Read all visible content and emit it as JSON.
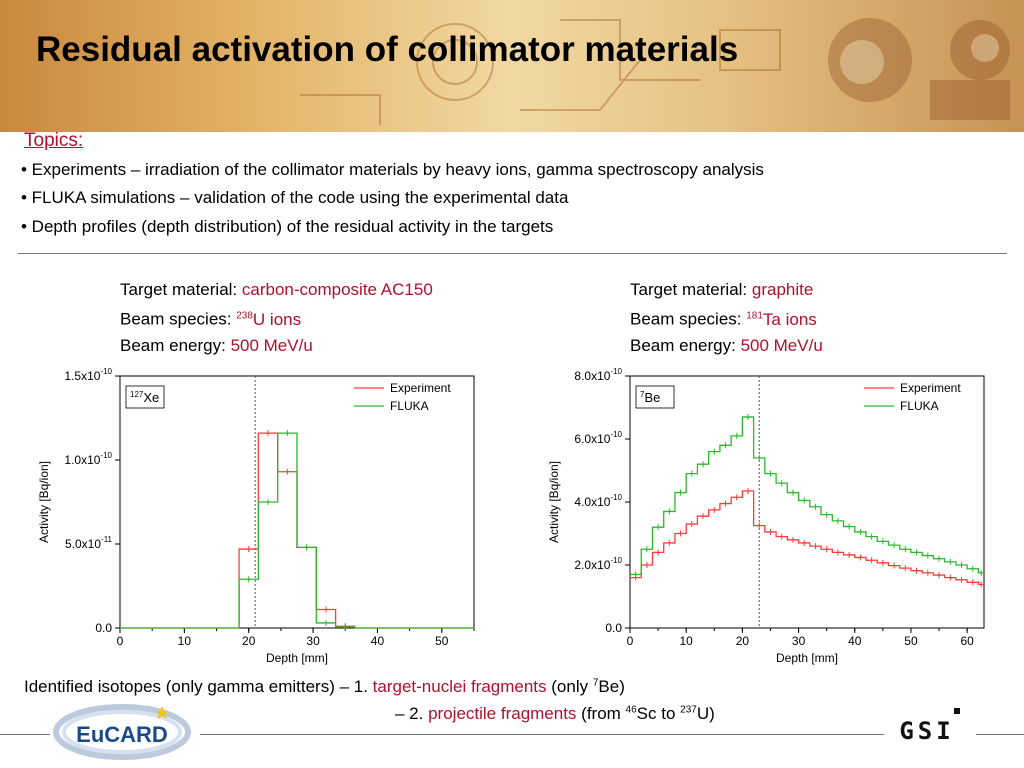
{
  "title": "Residual activation of collimator materials",
  "topics": {
    "heading": "Topics:",
    "bullets": [
      "• Experiments – irradiation of the collimator materials by heavy ions, gamma spectroscopy analysis",
      "• FLUKA simulations – validation of the code using the experimental data",
      "• Depth profiles (depth distribution) of the residual activity in the targets"
    ]
  },
  "left_info": {
    "material_label": "Target material: ",
    "material_value": "carbon-composite AC150",
    "species_label": "Beam species: ",
    "species_mass": "238",
    "species_value": "U ions",
    "energy_label": "Beam energy: ",
    "energy_value": "500 MeV/u"
  },
  "right_info": {
    "material_label": "Target material: ",
    "material_value": "graphite",
    "species_label": "Beam species: ",
    "species_mass": "181",
    "species_value": "Ta ions",
    "energy_label": "Beam energy: ",
    "energy_value": "500 MeV/u"
  },
  "footer": {
    "line1_prefix": "Identified isotopes (only gamma emitters)  – 1. ",
    "line1_highlight": "target-nuclei fragments",
    "line1_suffix_a": " (only ",
    "line1_sup": "7",
    "line1_suffix_b": "Be)",
    "line2_prefix": "– 2. ",
    "line2_highlight": "projectile fragments",
    "line2_suffix_a": " (from ",
    "line2_sup1": "46",
    "line2_mid": "Sc to ",
    "line2_sup2": "237",
    "line2_suffix_b": "U)"
  },
  "logos": {
    "left": "EuCARD",
    "right": "GSI"
  },
  "colors": {
    "accent": "#b0102e",
    "experiment": "#ff3b3b",
    "fluka": "#2db82d"
  },
  "chart_data": [
    {
      "type": "line",
      "step": true,
      "isotope_mass": "127",
      "isotope": "Xe",
      "xlabel": "Depth [mm]",
      "ylabel": "Activity [Bq/ion]",
      "xlim": [
        0,
        55
      ],
      "ylim": [
        0,
        1.5e-10
      ],
      "xticks": [
        0,
        10,
        20,
        30,
        40,
        50
      ],
      "xtick_labels": [
        "0",
        "10",
        "20",
        "30",
        "40",
        "50"
      ],
      "yticks": [
        0,
        5e-11,
        1e-10,
        1.5e-10
      ],
      "ytick_labels": [
        {
          "base": "0.0",
          "exp": ""
        },
        {
          "base": "5.0x10",
          "exp": "-11"
        },
        {
          "base": "1.0x10",
          "exp": "-10"
        },
        {
          "base": "1.5x10",
          "exp": "-10"
        }
      ],
      "vline": 21,
      "bin_edges": [
        0,
        18.5,
        21.5,
        24.5,
        27.5,
        30.5,
        33.5,
        36.5,
        55
      ],
      "series": [
        {
          "name": "Experiment",
          "color": "#ff3b3b",
          "values": [
            0,
            4.7e-11,
            1.16e-10,
            9.3e-11,
            4.8e-11,
            1.1e-11,
            1e-12,
            0
          ]
        },
        {
          "name": "FLUKA",
          "color": "#2db82d",
          "values": [
            0,
            2.9e-11,
            7.5e-11,
            1.16e-10,
            4.8e-11,
            3e-12,
            5e-13,
            0
          ]
        }
      ]
    },
    {
      "type": "line",
      "step": true,
      "isotope_mass": "7",
      "isotope": "Be",
      "xlabel": "Depth [mm]",
      "ylabel": "Activity [Bq/ion]",
      "xlim": [
        0,
        63
      ],
      "ylim": [
        0,
        8e-10
      ],
      "xticks": [
        0,
        10,
        20,
        30,
        40,
        50,
        60
      ],
      "xtick_labels": [
        "0",
        "10",
        "20",
        "30",
        "40",
        "50",
        "60"
      ],
      "yticks": [
        0,
        2e-10,
        4e-10,
        6e-10,
        8e-10
      ],
      "ytick_labels": [
        {
          "base": "0.0",
          "exp": ""
        },
        {
          "base": "2.0x10",
          "exp": "-10"
        },
        {
          "base": "4.0x10",
          "exp": "-10"
        },
        {
          "base": "6.0x10",
          "exp": "-10"
        },
        {
          "base": "8.0x10",
          "exp": "-10"
        }
      ],
      "vline": 23,
      "bin_edges": [
        0,
        2,
        4,
        6,
        8,
        10,
        12,
        14,
        16,
        18,
        20,
        22,
        24,
        26,
        28,
        30,
        32,
        34,
        36,
        38,
        40,
        42,
        44,
        46,
        48,
        50,
        52,
        54,
        56,
        58,
        60,
        62,
        63
      ],
      "series": [
        {
          "name": "Experiment",
          "color": "#ff3b3b",
          "values": [
            1.6e-10,
            2e-10,
            2.4e-10,
            2.7e-10,
            3e-10,
            3.3e-10,
            3.55e-10,
            3.75e-10,
            3.95e-10,
            4.15e-10,
            4.35e-10,
            3.25e-10,
            3.05e-10,
            2.9e-10,
            2.8e-10,
            2.7e-10,
            2.6e-10,
            2.5e-10,
            2.4e-10,
            2.32e-10,
            2.24e-10,
            2.15e-10,
            2.07e-10,
            1.98e-10,
            1.9e-10,
            1.82e-10,
            1.75e-10,
            1.68e-10,
            1.6e-10,
            1.53e-10,
            1.45e-10,
            1.38e-10
          ]
        },
        {
          "name": "FLUKA",
          "color": "#2db82d",
          "values": [
            1.7e-10,
            2.5e-10,
            3.2e-10,
            3.7e-10,
            4.3e-10,
            4.9e-10,
            5.2e-10,
            5.6e-10,
            5.8e-10,
            6.1e-10,
            6.7e-10,
            5.4e-10,
            4.9e-10,
            4.6e-10,
            4.3e-10,
            4.05e-10,
            3.85e-10,
            3.6e-10,
            3.4e-10,
            3.22e-10,
            3.05e-10,
            2.9e-10,
            2.75e-10,
            2.63e-10,
            2.5e-10,
            2.4e-10,
            2.3e-10,
            2.2e-10,
            2.1e-10,
            2e-10,
            1.88e-10,
            1.75e-10
          ]
        }
      ]
    }
  ]
}
